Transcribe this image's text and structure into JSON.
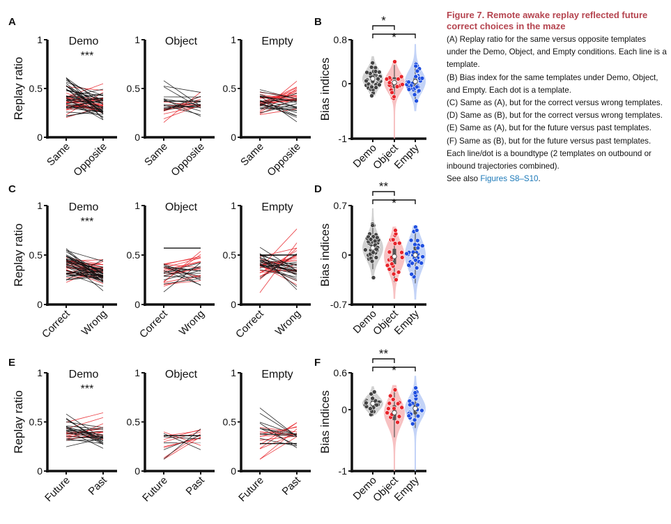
{
  "caption": {
    "title": "Figure 7. Remote awake replay reflected future correct choices in the maze",
    "paragraphs": [
      "(A) Replay ratio for the same versus opposite templates under the Demo, Object, and Empty conditions. Each line is a template.",
      "(B) Bias index for the same templates under Demo, Object, and Empty. Each dot is a template.",
      "(C) Same as (A), but for the correct versus wrong templates.",
      "(D) Same as (B), but for the correct versus wrong templates.",
      "(E) Same as (A), but for the future versus past templates.",
      "(F) Same as (B), but for the future versus past templates. Each line/dot is a boundtype (2 templates on outbound or inbound trajectories combined)."
    ],
    "see_also_prefix": "See also ",
    "see_also_link": "Figures S8–S10",
    "see_also_suffix": "."
  },
  "colors": {
    "black": "#111111",
    "red": "#e8242a",
    "blue": "#1f4fe0",
    "red_fill": "#f4a6a8",
    "blue_fill": "#a9c0f3",
    "grey_fill": "#bdbdbd"
  },
  "chart_data": [
    {
      "type": "line",
      "panel": "A",
      "title": "Demo",
      "ylabel": "Replay ratio",
      "ylim": [
        0,
        1
      ],
      "yticks": [
        "0",
        "0.5",
        "1"
      ],
      "categories": [
        "Same",
        "Opposite"
      ],
      "annotation": "***",
      "n_black": 38,
      "n_red": 22,
      "mean_black": [
        0.4,
        0.32
      ],
      "sd_black": [
        0.1,
        0.08
      ],
      "mean_red": [
        0.36,
        0.36
      ],
      "sd_red": [
        0.07,
        0.08
      ],
      "mean_line": null,
      "seed": 11
    },
    {
      "type": "line",
      "panel": "A",
      "title": "Object",
      "ylabel": "",
      "ylim": [
        0,
        1
      ],
      "yticks": [
        "0",
        "0.5",
        "1"
      ],
      "categories": [
        "Same",
        "Opposite"
      ],
      "annotation": "",
      "n_black": 14,
      "n_red": 9,
      "mean_black": [
        0.42,
        0.33
      ],
      "sd_black": [
        0.1,
        0.07
      ],
      "mean_red": [
        0.3,
        0.38
      ],
      "sd_red": [
        0.1,
        0.06
      ],
      "mean_line": 0.37,
      "seed": 23
    },
    {
      "type": "line",
      "panel": "A",
      "title": "Empty",
      "ylabel": "",
      "ylim": [
        0,
        1
      ],
      "yticks": [
        "0",
        "0.5",
        "1"
      ],
      "categories": [
        "Same",
        "Opposite"
      ],
      "annotation": "",
      "n_black": 20,
      "n_red": 20,
      "mean_black": [
        0.38,
        0.33
      ],
      "sd_black": [
        0.07,
        0.08
      ],
      "mean_red": [
        0.35,
        0.4
      ],
      "sd_red": [
        0.07,
        0.07
      ],
      "mean_line": null,
      "seed": 37
    },
    {
      "type": "line",
      "panel": "C",
      "title": "Demo",
      "ylabel": "Replay ratio",
      "ylim": [
        0,
        1
      ],
      "yticks": [
        "0",
        "0.5",
        "1"
      ],
      "categories": [
        "Correct",
        "Wrong"
      ],
      "annotation": "***",
      "n_black": 38,
      "n_red": 22,
      "mean_black": [
        0.42,
        0.31
      ],
      "sd_black": [
        0.1,
        0.07
      ],
      "mean_red": [
        0.38,
        0.35
      ],
      "sd_red": [
        0.07,
        0.07
      ],
      "mean_line": null,
      "seed": 41
    },
    {
      "type": "line",
      "panel": "C",
      "title": "Object",
      "ylabel": "",
      "ylim": [
        0,
        1
      ],
      "yticks": [
        "0",
        "0.5",
        "1"
      ],
      "categories": [
        "Correct",
        "Wrong"
      ],
      "annotation": "",
      "n_black": 14,
      "n_red": 14,
      "mean_black": [
        0.33,
        0.32
      ],
      "sd_black": [
        0.08,
        0.06
      ],
      "mean_red": [
        0.3,
        0.38
      ],
      "sd_red": [
        0.1,
        0.08
      ],
      "mean_line": 0.57,
      "seed": 53
    },
    {
      "type": "line",
      "panel": "C",
      "title": "Empty",
      "ylabel": "",
      "ylim": [
        0,
        1
      ],
      "yticks": [
        "0",
        "0.5",
        "1"
      ],
      "categories": [
        "Correct",
        "Wrong"
      ],
      "annotation": "",
      "n_black": 22,
      "n_red": 20,
      "mean_black": [
        0.42,
        0.34
      ],
      "sd_black": [
        0.07,
        0.08
      ],
      "mean_red": [
        0.36,
        0.42
      ],
      "sd_red": [
        0.09,
        0.12
      ],
      "mean_line": 0.5,
      "seed": 67
    },
    {
      "type": "line",
      "panel": "E",
      "title": "Demo",
      "ylabel": "Replay ratio",
      "ylim": [
        0,
        1
      ],
      "yticks": [
        "0",
        "0.5",
        "1"
      ],
      "categories": [
        "Future",
        "Past"
      ],
      "annotation": "***",
      "n_black": 22,
      "n_red": 12,
      "mean_black": [
        0.43,
        0.33
      ],
      "sd_black": [
        0.07,
        0.06
      ],
      "mean_red": [
        0.38,
        0.4
      ],
      "sd_red": [
        0.05,
        0.06
      ],
      "mean_line": null,
      "seed": 71
    },
    {
      "type": "line",
      "panel": "E",
      "title": "Object",
      "ylabel": "",
      "ylim": [
        0,
        1
      ],
      "yticks": [
        "0",
        "0.5",
        "1"
      ],
      "categories": [
        "Future",
        "Past"
      ],
      "annotation": "",
      "n_black": 5,
      "n_red": 8,
      "mean_black": [
        0.33,
        0.35
      ],
      "sd_black": [
        0.06,
        0.06
      ],
      "mean_red": [
        0.28,
        0.38
      ],
      "sd_red": [
        0.09,
        0.05
      ],
      "mean_line": 0.36,
      "seed": 83
    },
    {
      "type": "line",
      "panel": "E",
      "title": "Empty",
      "ylabel": "",
      "ylim": [
        0,
        1
      ],
      "yticks": [
        "0",
        "0.5",
        "1"
      ],
      "categories": [
        "Future",
        "Past"
      ],
      "annotation": "",
      "n_black": 10,
      "n_red": 12,
      "mean_black": [
        0.4,
        0.32
      ],
      "sd_black": [
        0.1,
        0.07
      ],
      "mean_red": [
        0.33,
        0.42
      ],
      "sd_red": [
        0.1,
        0.08
      ],
      "mean_line": 0.28,
      "seed": 97
    },
    {
      "type": "violin",
      "panel": "B",
      "ylabel": "Bias indices",
      "ylim": [
        -1,
        0.8
      ],
      "yticks": [
        "-1",
        "0",
        "0.8"
      ],
      "categories": [
        "Demo",
        "Object",
        "Empty"
      ],
      "significance": [
        {
          "from": 0,
          "to": 1,
          "label": "*"
        },
        {
          "from": 0,
          "to": 2,
          "label": "*"
        }
      ],
      "groups": [
        {
          "n": 38,
          "mean": 0.09,
          "sd": 0.15,
          "min": -0.22,
          "max": 0.5
        },
        {
          "n": 22,
          "mean": 0.02,
          "sd": 0.16,
          "min": -1,
          "max": 0.4
        },
        {
          "n": 30,
          "mean": 0.04,
          "sd": 0.18,
          "min": -0.5,
          "max": 0.72
        }
      ],
      "seed": 5
    },
    {
      "type": "violin",
      "panel": "D",
      "ylabel": "Bias indices",
      "ylim": [
        -0.7,
        0.7
      ],
      "yticks": [
        "-0.7",
        "0",
        "0.7"
      ],
      "categories": [
        "Demo",
        "Object",
        "Empty"
      ],
      "significance": [
        {
          "from": 0,
          "to": 1,
          "label": "**"
        },
        {
          "from": 0,
          "to": 2,
          "label": "*"
        }
      ],
      "groups": [
        {
          "n": 38,
          "mean": 0.1,
          "sd": 0.15,
          "min": -0.32,
          "max": 0.66
        },
        {
          "n": 24,
          "mean": -0.02,
          "sd": 0.18,
          "min": -0.62,
          "max": 0.4
        },
        {
          "n": 34,
          "mean": 0.0,
          "sd": 0.2,
          "min": -0.63,
          "max": 0.42
        }
      ],
      "seed": 9
    },
    {
      "type": "violin",
      "panel": "F",
      "ylabel": "Bias indices",
      "ylim": [
        -1,
        0.6
      ],
      "yticks": [
        "-1",
        "0",
        "0.6"
      ],
      "categories": [
        "Demo",
        "Object",
        "Empty"
      ],
      "significance": [
        {
          "from": 0,
          "to": 1,
          "label": "**"
        },
        {
          "from": 0,
          "to": 2,
          "label": "*"
        }
      ],
      "groups": [
        {
          "n": 24,
          "mean": 0.1,
          "sd": 0.1,
          "min": -0.08,
          "max": 0.38
        },
        {
          "n": 14,
          "mean": -0.05,
          "sd": 0.2,
          "min": -1,
          "max": 0.4
        },
        {
          "n": 20,
          "mean": 0.02,
          "sd": 0.16,
          "min": -1,
          "max": 0.55
        }
      ],
      "seed": 13
    }
  ],
  "panel_letters": [
    "A",
    "B",
    "C",
    "D",
    "E",
    "F"
  ]
}
